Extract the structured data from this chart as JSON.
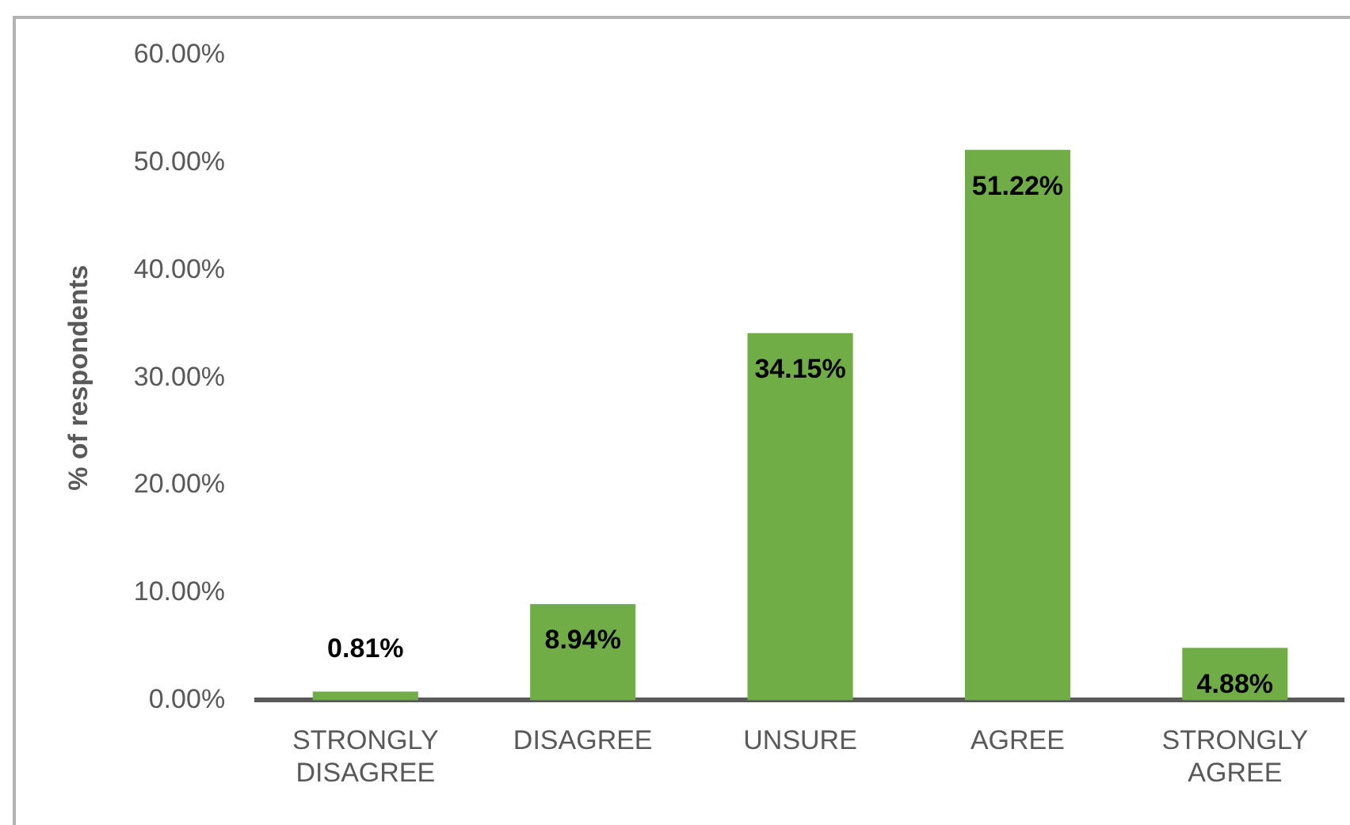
{
  "chart_data": {
    "type": "bar",
    "ylabel": "% of respondents",
    "categories": [
      "STRONGLY DISAGREE",
      "DISAGREE",
      "UNSURE",
      "AGREE",
      "STRONGLY AGREE"
    ],
    "values": [
      0.81,
      8.94,
      34.15,
      51.22,
      4.88
    ],
    "value_labels": [
      "0.81%",
      "8.94%",
      "34.15%",
      "51.22%",
      "4.88%"
    ],
    "color": "#70ad47",
    "ylim": [
      0,
      60
    ],
    "yticks": [
      {
        "value": 0,
        "label": "0.00%"
      },
      {
        "value": 10,
        "label": "10.00%"
      },
      {
        "value": 20,
        "label": "20.00%"
      },
      {
        "value": 30,
        "label": "30.00%"
      },
      {
        "value": 40,
        "label": "40.00%"
      },
      {
        "value": 50,
        "label": "50.00%"
      },
      {
        "value": 60,
        "label": "60.00%"
      }
    ],
    "legend": false
  }
}
